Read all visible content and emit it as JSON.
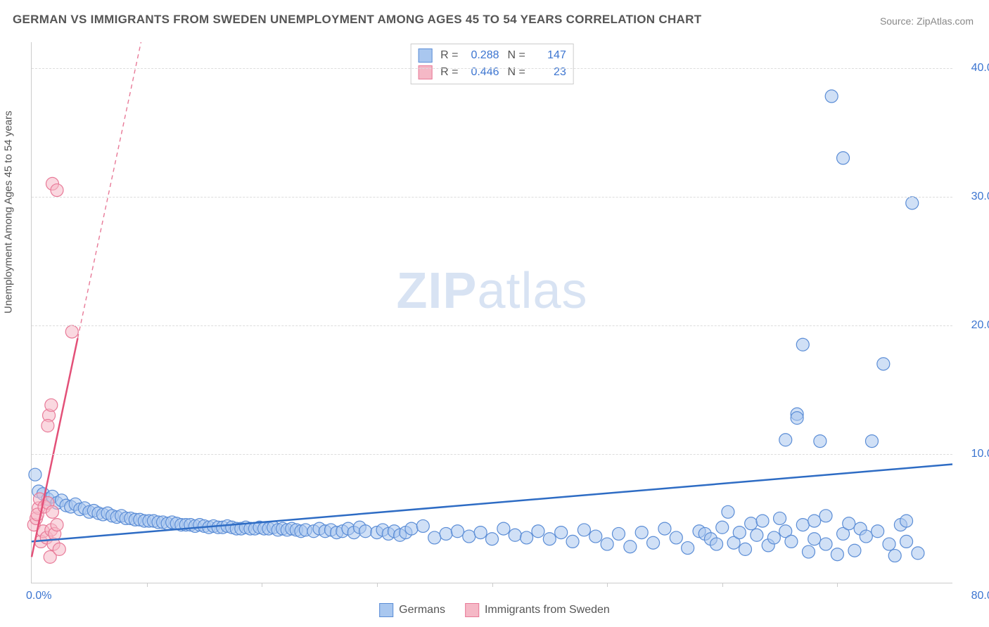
{
  "title": "GERMAN VS IMMIGRANTS FROM SWEDEN UNEMPLOYMENT AMONG AGES 45 TO 54 YEARS CORRELATION CHART",
  "source": "Source: ZipAtlas.com",
  "ylabel": "Unemployment Among Ages 45 to 54 years",
  "watermark_bold": "ZIP",
  "watermark_light": "atlas",
  "chart": {
    "type": "scatter",
    "xlim": [
      0,
      80
    ],
    "ylim": [
      0,
      42
    ],
    "xtick_labels": {
      "min": "0.0%",
      "max": "80.0%"
    },
    "xtick_marks": [
      10,
      20,
      30,
      40,
      50,
      60,
      70
    ],
    "yticks": [
      10,
      20,
      30,
      40
    ],
    "ytick_labels": [
      "10.0%",
      "20.0%",
      "30.0%",
      "40.0%"
    ],
    "grid_color": "#dddddd",
    "axis_color": "#cccccc",
    "background_color": "#ffffff",
    "label_fontsize": 15,
    "tick_fontsize": 16,
    "tick_color": "#3b74d0",
    "marker_radius": 9,
    "marker_stroke_width": 1.2,
    "trend_line_width": 2.5,
    "trend_dash_width": 1.4
  },
  "series": {
    "germans": {
      "label": "Germans",
      "fill": "#a9c7ef",
      "stroke": "#5b8dd6",
      "fill_opacity": 0.55,
      "R": "0.288",
      "N": "147",
      "trend": {
        "x1": 0,
        "y1": 3.2,
        "x2": 80,
        "y2": 9.2,
        "color": "#2e6cc4"
      },
      "points": [
        [
          0.3,
          8.4
        ],
        [
          0.6,
          7.1
        ],
        [
          1,
          6.9
        ],
        [
          1.4,
          6.5
        ],
        [
          1.8,
          6.7
        ],
        [
          2.2,
          6.2
        ],
        [
          2.6,
          6.4
        ],
        [
          3,
          6.0
        ],
        [
          3.4,
          5.9
        ],
        [
          3.8,
          6.1
        ],
        [
          4.2,
          5.7
        ],
        [
          4.6,
          5.8
        ],
        [
          5,
          5.5
        ],
        [
          5.4,
          5.6
        ],
        [
          5.8,
          5.4
        ],
        [
          6.2,
          5.3
        ],
        [
          6.6,
          5.4
        ],
        [
          7,
          5.2
        ],
        [
          7.4,
          5.1
        ],
        [
          7.8,
          5.2
        ],
        [
          8.2,
          5.0
        ],
        [
          8.6,
          5.0
        ],
        [
          9,
          4.9
        ],
        [
          9.4,
          4.9
        ],
        [
          9.8,
          4.8
        ],
        [
          10.2,
          4.8
        ],
        [
          10.6,
          4.8
        ],
        [
          11,
          4.7
        ],
        [
          11.4,
          4.7
        ],
        [
          11.8,
          4.6
        ],
        [
          12.2,
          4.7
        ],
        [
          12.6,
          4.6
        ],
        [
          13,
          4.5
        ],
        [
          13.4,
          4.5
        ],
        [
          13.8,
          4.5
        ],
        [
          14.2,
          4.4
        ],
        [
          14.6,
          4.5
        ],
        [
          15,
          4.4
        ],
        [
          15.4,
          4.3
        ],
        [
          15.8,
          4.4
        ],
        [
          16.2,
          4.3
        ],
        [
          16.6,
          4.3
        ],
        [
          17,
          4.4
        ],
        [
          17.4,
          4.3
        ],
        [
          17.8,
          4.2
        ],
        [
          18.2,
          4.2
        ],
        [
          18.6,
          4.3
        ],
        [
          19,
          4.2
        ],
        [
          19.4,
          4.2
        ],
        [
          19.8,
          4.3
        ],
        [
          20.2,
          4.2
        ],
        [
          20.6,
          4.2
        ],
        [
          21,
          4.3
        ],
        [
          21.4,
          4.1
        ],
        [
          21.8,
          4.2
        ],
        [
          22.2,
          4.1
        ],
        [
          22.6,
          4.2
        ],
        [
          23,
          4.1
        ],
        [
          23.4,
          4.0
        ],
        [
          23.8,
          4.1
        ],
        [
          24.5,
          4.0
        ],
        [
          25,
          4.2
        ],
        [
          25.5,
          4.0
        ],
        [
          26,
          4.1
        ],
        [
          26.5,
          3.9
        ],
        [
          27,
          4.0
        ],
        [
          27.5,
          4.2
        ],
        [
          28,
          3.9
        ],
        [
          28.5,
          4.3
        ],
        [
          29,
          4.0
        ],
        [
          30,
          3.9
        ],
        [
          30.5,
          4.1
        ],
        [
          31,
          3.8
        ],
        [
          31.5,
          4.0
        ],
        [
          32,
          3.7
        ],
        [
          32.5,
          3.9
        ],
        [
          33,
          4.2
        ],
        [
          34,
          4.4
        ],
        [
          35,
          3.5
        ],
        [
          36,
          3.8
        ],
        [
          37,
          4.0
        ],
        [
          38,
          3.6
        ],
        [
          39,
          3.9
        ],
        [
          40,
          3.4
        ],
        [
          41,
          4.2
        ],
        [
          42,
          3.7
        ],
        [
          43,
          3.5
        ],
        [
          44,
          4.0
        ],
        [
          45,
          3.4
        ],
        [
          46,
          3.9
        ],
        [
          47,
          3.2
        ],
        [
          48,
          4.1
        ],
        [
          49,
          3.6
        ],
        [
          50,
          3.0
        ],
        [
          51,
          3.8
        ],
        [
          52,
          2.8
        ],
        [
          53,
          3.9
        ],
        [
          54,
          3.1
        ],
        [
          55,
          4.2
        ],
        [
          56,
          3.5
        ],
        [
          57,
          2.7
        ],
        [
          58,
          4.0
        ],
        [
          58.5,
          3.8
        ],
        [
          59,
          3.4
        ],
        [
          59.5,
          3.0
        ],
        [
          60,
          4.3
        ],
        [
          60.5,
          5.5
        ],
        [
          61,
          3.1
        ],
        [
          61.5,
          3.9
        ],
        [
          62,
          2.6
        ],
        [
          62.5,
          4.6
        ],
        [
          63,
          3.7
        ],
        [
          63.5,
          4.8
        ],
        [
          64,
          2.9
        ],
        [
          64.5,
          3.5
        ],
        [
          65,
          5.0
        ],
        [
          65.5,
          11.1
        ],
        [
          65.5,
          4.0
        ],
        [
          66,
          3.2
        ],
        [
          66.5,
          13.1
        ],
        [
          66.5,
          12.8
        ],
        [
          67,
          4.5
        ],
        [
          67,
          18.5
        ],
        [
          67.5,
          2.4
        ],
        [
          68,
          3.4
        ],
        [
          68.5,
          11.0
        ],
        [
          68,
          4.8
        ],
        [
          69,
          5.2
        ],
        [
          69,
          3.0
        ],
        [
          69.5,
          37.8
        ],
        [
          70,
          2.2
        ],
        [
          70.5,
          3.8
        ],
        [
          70.5,
          33.0
        ],
        [
          71,
          4.6
        ],
        [
          71.5,
          2.5
        ],
        [
          72,
          4.2
        ],
        [
          72.5,
          3.6
        ],
        [
          73,
          11.0
        ],
        [
          73.5,
          4.0
        ],
        [
          74,
          17.0
        ],
        [
          74.5,
          3.0
        ],
        [
          75,
          2.1
        ],
        [
          75.5,
          4.5
        ],
        [
          76,
          3.2
        ],
        [
          76.5,
          29.5
        ],
        [
          77,
          2.3
        ],
        [
          76,
          4.8
        ]
      ]
    },
    "sweden": {
      "label": "Immigrants from Sweden",
      "fill": "#f5b8c6",
      "stroke": "#e87a98",
      "fill_opacity": 0.55,
      "R": "0.446",
      "N": "23",
      "trend_solid": {
        "x1": 0,
        "y1": 2.0,
        "x2": 4.0,
        "y2": 19.0,
        "color": "#e35078"
      },
      "trend_dash": {
        "x1": 4.0,
        "y1": 19.0,
        "x2": 9.5,
        "y2": 42.0,
        "color": "#e87a98"
      },
      "points": [
        [
          0.2,
          4.5
        ],
        [
          0.4,
          5.0
        ],
        [
          0.6,
          5.8
        ],
        [
          0.8,
          3.2
        ],
        [
          0.5,
          5.3
        ],
        [
          0.7,
          6.5
        ],
        [
          1.0,
          4.0
        ],
        [
          1.1,
          5.9
        ],
        [
          1.3,
          3.5
        ],
        [
          1.4,
          6.2
        ],
        [
          1.6,
          2.0
        ],
        [
          1.7,
          4.1
        ],
        [
          1.8,
          5.5
        ],
        [
          1.9,
          3.0
        ],
        [
          2.0,
          3.8
        ],
        [
          1.5,
          13.0
        ],
        [
          1.4,
          12.2
        ],
        [
          1.7,
          13.8
        ],
        [
          2.2,
          4.5
        ],
        [
          2.4,
          2.6
        ],
        [
          3.5,
          19.5
        ],
        [
          1.8,
          31.0
        ],
        [
          2.2,
          30.5
        ]
      ]
    }
  },
  "stats_legend": {
    "r_label": "R =",
    "n_label": "N ="
  },
  "bottom_legend": {
    "germans": "Germans",
    "sweden": "Immigrants from Sweden"
  }
}
